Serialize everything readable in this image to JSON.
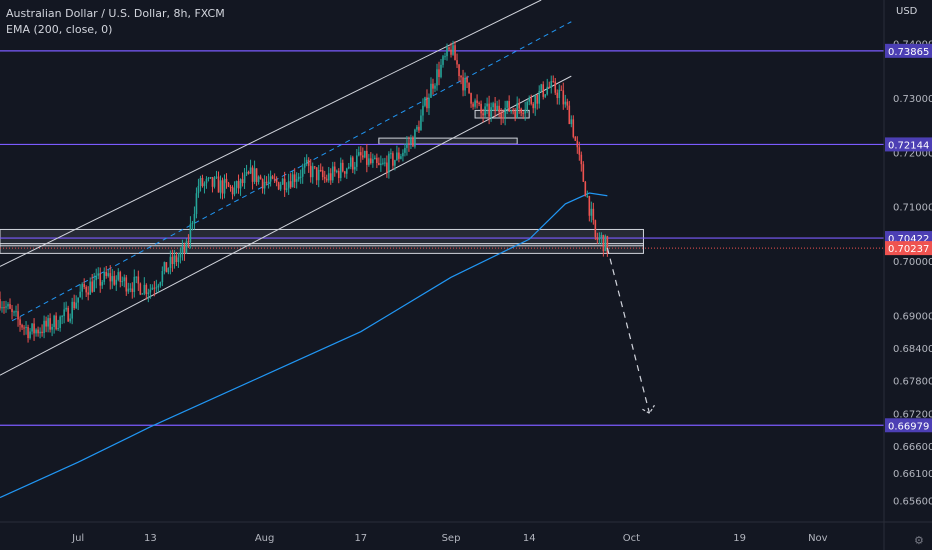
{
  "legend": {
    "title": "Australian Dollar / U.S. Dollar, 8h, FXCM",
    "indicator": "EMA (200, close, 0)"
  },
  "currency": "USD",
  "colors": {
    "background": "#131722",
    "axis_text": "#b2b5be",
    "up": "#26a69a",
    "down": "#ef5350",
    "ema": "#2196f3",
    "hline": "#7b5bff",
    "channel": "#d1d4dc",
    "label_bg": "#4c3fb4",
    "current_price_bg": "#ef5350"
  },
  "chart_data": {
    "type": "candlestick",
    "symbol": "AUDUSD",
    "timeframe": "8h",
    "x_axis": {
      "date_range": [
        "2020-06-18",
        "2020-11-12"
      ],
      "ticks": [
        {
          "date": "2020-07-01",
          "label": "Jul"
        },
        {
          "date": "2020-07-13",
          "label": "13"
        },
        {
          "date": "2020-08-01",
          "label": "Aug"
        },
        {
          "date": "2020-08-17",
          "label": "17"
        },
        {
          "date": "2020-09-01",
          "label": "Sep"
        },
        {
          "date": "2020-09-14",
          "label": "14"
        },
        {
          "date": "2020-10-01",
          "label": "Oct"
        },
        {
          "date": "2020-10-19",
          "label": "19"
        },
        {
          "date": "2020-11-01",
          "label": "Nov"
        }
      ]
    },
    "y_axis": {
      "range": [
        0.652,
        0.748
      ],
      "ticks": [
        "0.65600",
        "0.66100",
        "0.66600",
        "0.67200",
        "0.67800",
        "0.68400",
        "0.69000",
        "0.70000",
        "0.71000",
        "0.72000",
        "0.73000",
        "0.74000"
      ]
    },
    "price_labels": [
      {
        "value": 0.73865,
        "label": "0.73865",
        "kind": "level"
      },
      {
        "value": 0.72144,
        "label": "0.72144",
        "kind": "level"
      },
      {
        "value": 0.70422,
        "label": "0.70422",
        "kind": "level"
      },
      {
        "value": 0.70237,
        "label": "0.70237",
        "kind": "current"
      },
      {
        "value": 0.66979,
        "label": "0.66979",
        "kind": "level"
      }
    ],
    "horizontal_lines": [
      0.73865,
      0.72144,
      0.70422,
      0.66979
    ],
    "close_path": [
      [
        "2020-06-18",
        0.693
      ],
      [
        "2020-06-20",
        0.69
      ],
      [
        "2020-06-23",
        0.687
      ],
      [
        "2020-06-26",
        0.688
      ],
      [
        "2020-06-29",
        0.69
      ],
      [
        "2020-07-02",
        0.695
      ],
      [
        "2020-07-06",
        0.697
      ],
      [
        "2020-07-09",
        0.696
      ],
      [
        "2020-07-13",
        0.695
      ],
      [
        "2020-07-16",
        0.699
      ],
      [
        "2020-07-19",
        0.702
      ],
      [
        "2020-07-21",
        0.714
      ],
      [
        "2020-07-24",
        0.714
      ],
      [
        "2020-07-27",
        0.713
      ],
      [
        "2020-07-30",
        0.716
      ],
      [
        "2020-08-02",
        0.714
      ],
      [
        "2020-08-05",
        0.715
      ],
      [
        "2020-08-08",
        0.717
      ],
      [
        "2020-08-11",
        0.715
      ],
      [
        "2020-08-14",
        0.717
      ],
      [
        "2020-08-17",
        0.719
      ],
      [
        "2020-08-20",
        0.717
      ],
      [
        "2020-08-23",
        0.719
      ],
      [
        "2020-08-26",
        0.723
      ],
      [
        "2020-08-29",
        0.733
      ],
      [
        "2020-09-01",
        0.739
      ],
      [
        "2020-09-03",
        0.733
      ],
      [
        "2020-09-06",
        0.727
      ],
      [
        "2020-09-09",
        0.728
      ],
      [
        "2020-09-12",
        0.728
      ],
      [
        "2020-09-15",
        0.73
      ],
      [
        "2020-09-17",
        0.732
      ],
      [
        "2020-09-19",
        0.731
      ],
      [
        "2020-09-21",
        0.726
      ],
      [
        "2020-09-22",
        0.72
      ],
      [
        "2020-09-24",
        0.71
      ],
      [
        "2020-09-25",
        0.704
      ],
      [
        "2020-09-26",
        0.704
      ],
      [
        "2020-09-27",
        0.7024
      ]
    ],
    "ema_200": [
      [
        "2020-06-18",
        0.6565
      ],
      [
        "2020-07-01",
        0.663
      ],
      [
        "2020-07-13",
        0.6695
      ],
      [
        "2020-08-01",
        0.679
      ],
      [
        "2020-08-17",
        0.687
      ],
      [
        "2020-09-01",
        0.697
      ],
      [
        "2020-09-14",
        0.704
      ],
      [
        "2020-09-20",
        0.7105
      ],
      [
        "2020-09-24",
        0.7125
      ],
      [
        "2020-09-27",
        0.712
      ]
    ],
    "ascending_channel": {
      "upper": [
        [
          "2020-06-18",
          0.699
        ],
        [
          "2020-09-16",
          0.748
        ]
      ],
      "lower": [
        [
          "2020-06-18",
          0.679
        ],
        [
          "2020-09-21",
          0.734
        ]
      ],
      "median_dashed": [
        [
          "2020-06-20",
          0.689
        ],
        [
          "2020-09-21",
          0.744
        ]
      ]
    },
    "rectangles": [
      {
        "from": "2020-06-18",
        "to": "2020-10-03",
        "top": 0.7058,
        "bottom": 0.7028
      },
      {
        "from": "2020-06-18",
        "to": "2020-10-03",
        "top": 0.7032,
        "bottom": 0.7014
      },
      {
        "from": "2020-08-20",
        "to": "2020-09-12",
        "top": 0.7226,
        "bottom": 0.7215
      },
      {
        "from": "2020-09-05",
        "to": "2020-09-14",
        "top": 0.7277,
        "bottom": 0.7263
      }
    ],
    "projection": {
      "path": [
        [
          "2020-09-27",
          0.7024
        ],
        [
          "2020-10-04",
          0.672
        ]
      ],
      "arrow_tip": [
        "2020-10-04",
        0.672
      ]
    },
    "grid": false,
    "legend_position": "top-left"
  }
}
